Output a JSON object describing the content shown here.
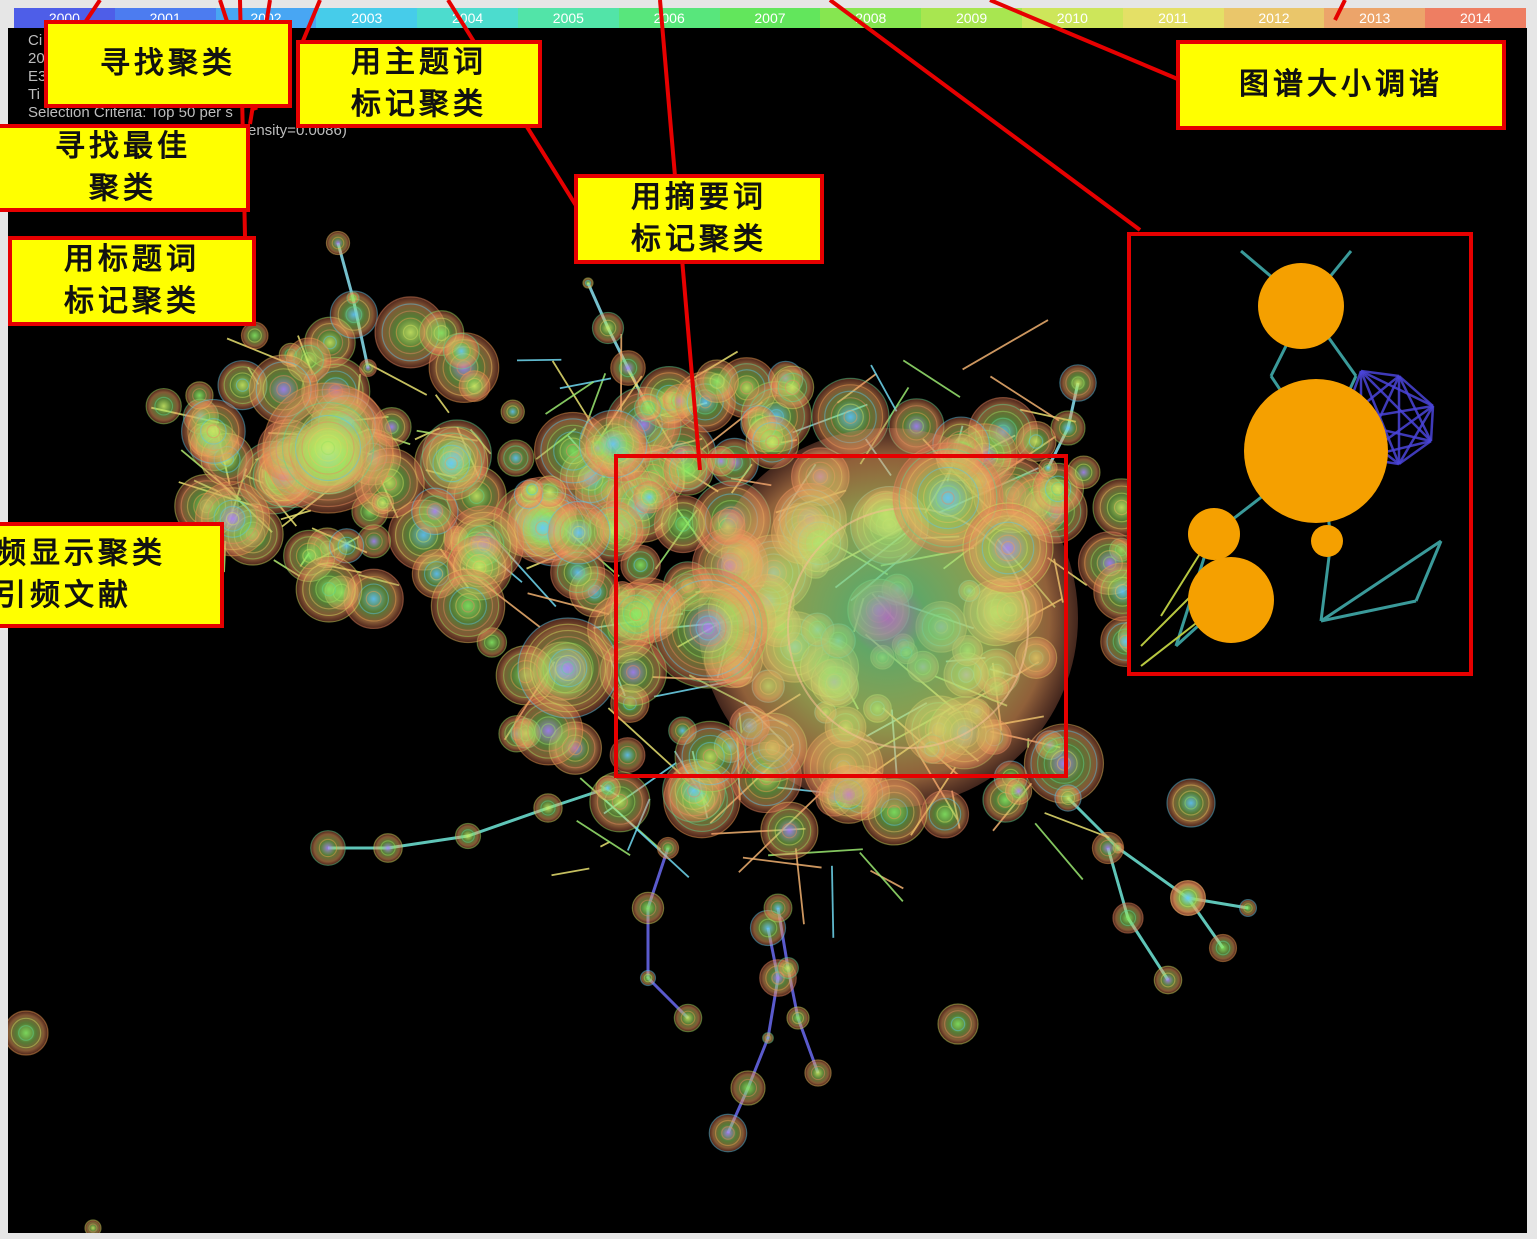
{
  "timeline": {
    "years": [
      {
        "label": "2000",
        "color": "#4e5ee8"
      },
      {
        "label": "2001",
        "color": "#4c7cf0"
      },
      {
        "label": "2002",
        "color": "#48a6f3"
      },
      {
        "label": "2003",
        "color": "#46ccea"
      },
      {
        "label": "2004",
        "color": "#4cdcce"
      },
      {
        "label": "2005",
        "color": "#52e4a8"
      },
      {
        "label": "2006",
        "color": "#58e67c"
      },
      {
        "label": "2007",
        "color": "#62e65c"
      },
      {
        "label": "2008",
        "color": "#86e650"
      },
      {
        "label": "2009",
        "color": "#a8e650"
      },
      {
        "label": "2010",
        "color": "#cde65a"
      },
      {
        "label": "2011",
        "color": "#e4e066"
      },
      {
        "label": "2012",
        "color": "#eac66a"
      },
      {
        "label": "2013",
        "color": "#eca46a"
      },
      {
        "label": "2014",
        "color": "#ee7e62"
      }
    ]
  },
  "info_panel": {
    "line1": "Ci",
    "line2": "20",
    "line3": "E3",
    "line4": "Ti",
    "criteria": "Selection Criteria: Top 50 per s",
    "density": "ensity=0.0086)"
  },
  "callouts": {
    "find_clusters": "寻找聚类",
    "label_by_subject": [
      "用主题词",
      "标记聚类"
    ],
    "find_best": [
      "寻找最佳",
      "聚类"
    ],
    "label_by_title": [
      "用标题词",
      "标记聚类"
    ],
    "label_by_abstract": [
      "用摘要词",
      "标记聚类"
    ],
    "adjust_map_size": "图谱大小调谐",
    "show_clusters": [
      "频显示聚类",
      "引频文献"
    ]
  },
  "colors": {
    "callout_bg": "#ffff00",
    "callout_border": "#e60000",
    "canvas_bg": "#000000",
    "inset_node": "#f5a000",
    "inset_clique": "#4a44d8"
  }
}
